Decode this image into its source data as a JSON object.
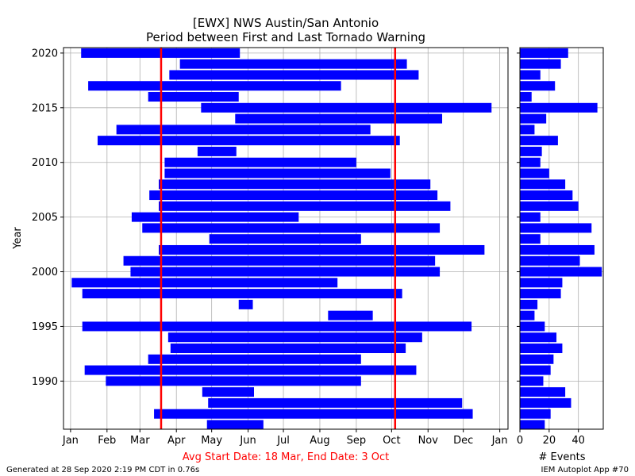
{
  "chart_data": [
    {
      "type": "bar",
      "orientation": "horizontal-range",
      "title": "[EWX] NWS Austin/San Antonio",
      "subtitle": "Period between First and Last Tornado Warning",
      "xlabel": "Avg Start Date: 18 Mar, End Date: 3 Oct",
      "ylabel": "Year",
      "x_ticks": [
        "Jan",
        "Feb",
        "Mar",
        "Apr",
        "May",
        "Jun",
        "Jul",
        "Aug",
        "Sep",
        "Oct",
        "Nov",
        "Dec",
        "Jan"
      ],
      "y_ticks": [
        "1990",
        "1995",
        "2000",
        "2005",
        "2010",
        "2015",
        "2020"
      ],
      "xlim_day_of_year": [
        -6,
        372
      ],
      "ylim": [
        1985.6,
        2020.5
      ],
      "grid": true,
      "bar_color": "#0000ff",
      "avg_line_color": "#ff0000",
      "avg_lines_day_of_year": [
        77,
        276
      ],
      "rows": [
        {
          "year": 2020,
          "start": 9,
          "end": 144
        },
        {
          "year": 2019,
          "start": 93,
          "end": 286
        },
        {
          "year": 2018,
          "start": 84,
          "end": 296
        },
        {
          "year": 2017,
          "start": 15,
          "end": 230
        },
        {
          "year": 2016,
          "start": 66,
          "end": 143
        },
        {
          "year": 2015,
          "start": 111,
          "end": 358
        },
        {
          "year": 2014,
          "start": 140,
          "end": 316
        },
        {
          "year": 2013,
          "start": 39,
          "end": 255
        },
        {
          "year": 2012,
          "start": 23,
          "end": 280
        },
        {
          "year": 2011,
          "start": 108,
          "end": 141
        },
        {
          "year": 2010,
          "start": 80,
          "end": 243
        },
        {
          "year": 2009,
          "start": 80,
          "end": 272
        },
        {
          "year": 2008,
          "start": 75,
          "end": 306
        },
        {
          "year": 2007,
          "start": 67,
          "end": 312
        },
        {
          "year": 2006,
          "start": 75,
          "end": 323
        },
        {
          "year": 2005,
          "start": 52,
          "end": 194
        },
        {
          "year": 2004,
          "start": 61,
          "end": 314
        },
        {
          "year": 2003,
          "start": 118,
          "end": 247
        },
        {
          "year": 2002,
          "start": 75,
          "end": 352
        },
        {
          "year": 2001,
          "start": 45,
          "end": 310
        },
        {
          "year": 2000,
          "start": 51,
          "end": 314
        },
        {
          "year": 1999,
          "start": 1,
          "end": 227
        },
        {
          "year": 1998,
          "start": 10,
          "end": 282
        },
        {
          "year": 1997,
          "start": 143,
          "end": 155
        },
        {
          "year": 1996,
          "start": 219,
          "end": 257
        },
        {
          "year": 1995,
          "start": 10,
          "end": 341
        },
        {
          "year": 1994,
          "start": 83,
          "end": 299
        },
        {
          "year": 1993,
          "start": 85,
          "end": 285
        },
        {
          "year": 1992,
          "start": 66,
          "end": 247
        },
        {
          "year": 1991,
          "start": 12,
          "end": 294
        },
        {
          "year": 1990,
          "start": 30,
          "end": 247
        },
        {
          "year": 1989,
          "start": 112,
          "end": 156
        },
        {
          "year": 1988,
          "start": 117,
          "end": 333
        },
        {
          "year": 1987,
          "start": 71,
          "end": 342
        },
        {
          "year": 1986,
          "start": 116,
          "end": 164
        }
      ]
    },
    {
      "type": "bar",
      "orientation": "horizontal",
      "xlabel": "# Events",
      "x_ticks": [
        "0",
        "20",
        "40"
      ],
      "xlim": [
        0,
        57
      ],
      "grid": true,
      "bar_color": "#0000ff",
      "rows": [
        {
          "year": 2020,
          "value": 33
        },
        {
          "year": 2019,
          "value": 28
        },
        {
          "year": 2018,
          "value": 14
        },
        {
          "year": 2017,
          "value": 24
        },
        {
          "year": 2016,
          "value": 8
        },
        {
          "year": 2015,
          "value": 53
        },
        {
          "year": 2014,
          "value": 18
        },
        {
          "year": 2013,
          "value": 10
        },
        {
          "year": 2012,
          "value": 26
        },
        {
          "year": 2011,
          "value": 15
        },
        {
          "year": 2010,
          "value": 14
        },
        {
          "year": 2009,
          "value": 20
        },
        {
          "year": 2008,
          "value": 31
        },
        {
          "year": 2007,
          "value": 36
        },
        {
          "year": 2006,
          "value": 40
        },
        {
          "year": 2005,
          "value": 14
        },
        {
          "year": 2004,
          "value": 49
        },
        {
          "year": 2003,
          "value": 14
        },
        {
          "year": 2002,
          "value": 51
        },
        {
          "year": 2001,
          "value": 41
        },
        {
          "year": 2000,
          "value": 56
        },
        {
          "year": 1999,
          "value": 29
        },
        {
          "year": 1998,
          "value": 28
        },
        {
          "year": 1997,
          "value": 12
        },
        {
          "year": 1996,
          "value": 10
        },
        {
          "year": 1995,
          "value": 17
        },
        {
          "year": 1994,
          "value": 25
        },
        {
          "year": 1993,
          "value": 29
        },
        {
          "year": 1992,
          "value": 23
        },
        {
          "year": 1991,
          "value": 21
        },
        {
          "year": 1990,
          "value": 16
        },
        {
          "year": 1989,
          "value": 31
        },
        {
          "year": 1988,
          "value": 35
        },
        {
          "year": 1987,
          "value": 21
        },
        {
          "year": 1986,
          "value": 17
        }
      ]
    }
  ],
  "footer": {
    "generated": "Generated at 28 Sep 2020 2:19 PM CDT in 0.76s",
    "app": "IEM Autoplot App #70"
  }
}
